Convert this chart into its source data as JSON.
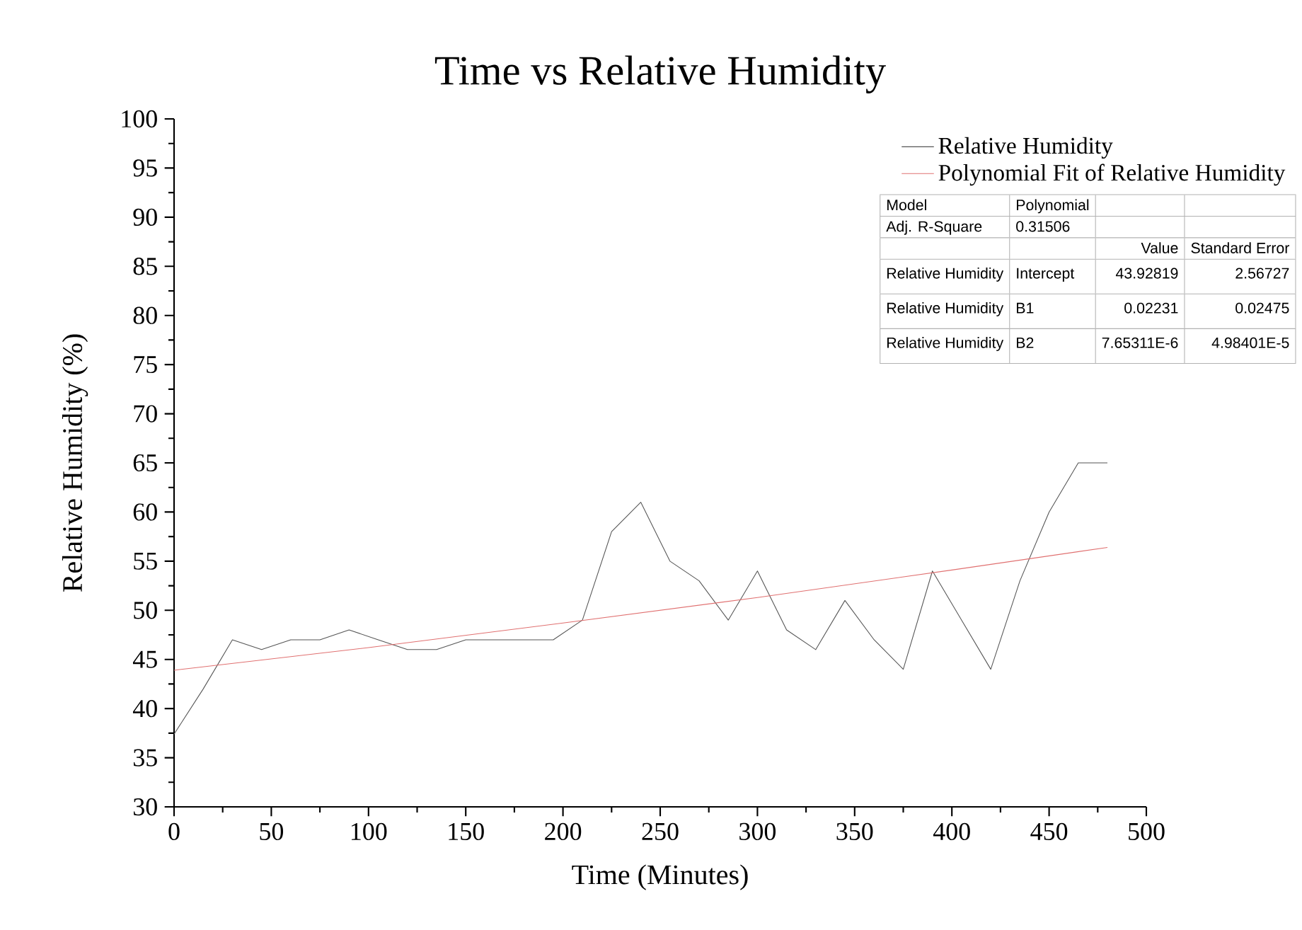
{
  "chart_data": {
    "type": "line",
    "title": "Time vs Relative Humidity",
    "xlabel": "Time (Minutes)",
    "ylabel": "Relative Humidity (%)",
    "xlim": [
      0,
      500
    ],
    "xticks": [
      0,
      50,
      100,
      150,
      200,
      250,
      300,
      350,
      400,
      450,
      500
    ],
    "ylim": [
      30,
      100
    ],
    "yticks": [
      30,
      35,
      40,
      45,
      50,
      55,
      60,
      65,
      70,
      75,
      80,
      85,
      90,
      95,
      100
    ],
    "grid": false,
    "legend": "top right",
    "marker": "none",
    "line_style": "solid",
    "series": [
      {
        "name": "Relative Humidity",
        "color": "#555555",
        "x": [
          0,
          15,
          30,
          45,
          60,
          75,
          90,
          105,
          120,
          135,
          150,
          165,
          180,
          195,
          210,
          225,
          240,
          255,
          270,
          285,
          300,
          315,
          330,
          345,
          360,
          375,
          390,
          405,
          420,
          435,
          450,
          465,
          480
        ],
        "values": [
          37.4,
          42,
          47,
          46,
          47,
          47,
          48,
          47,
          46,
          46,
          47,
          47,
          47,
          47,
          49,
          58,
          61,
          55,
          53,
          49,
          54,
          48,
          46,
          51,
          47,
          44,
          54,
          49,
          44,
          53,
          60,
          65,
          65
        ]
      },
      {
        "name": "Polynomial Fit of Relative Humidity",
        "color": "#e07070",
        "x": [
          0,
          100,
          200,
          300,
          400,
          480
        ],
        "values": [
          43.9,
          46.2,
          48.7,
          51.3,
          54.1,
          56.4
        ]
      }
    ],
    "annotations": [
      "Model",
      "Polynomial",
      "Adj. R-Square",
      "0.31506",
      "Value",
      "Standard Error",
      "Relative Humidity",
      "Intercept",
      "43.92819",
      "2.56727",
      "Relative Humidity",
      "B1",
      "0.02231",
      "0.02475",
      "Relative Humidity",
      "B2",
      "7.65311E-6",
      "4.98401E-5"
    ]
  }
}
